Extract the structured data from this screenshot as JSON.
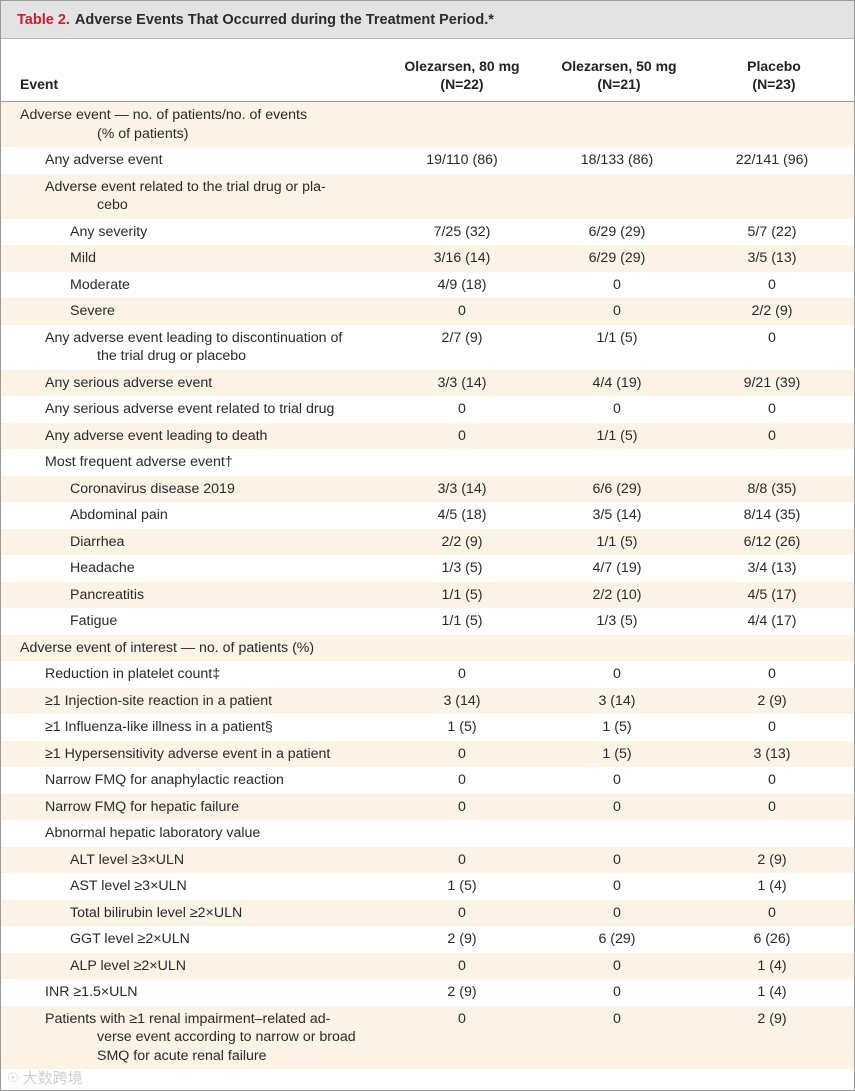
{
  "table": {
    "label": "Table 2.",
    "title": "Adverse Events That Occurred during the Treatment Period.*",
    "columns": {
      "event": "Event",
      "groups": [
        {
          "name": "Olezarsen, 80 mg",
          "n": "(N=22)"
        },
        {
          "name": "Olezarsen, 50 mg",
          "n": "(N=21)"
        },
        {
          "name": "Placebo",
          "n": "(N=23)"
        }
      ]
    },
    "rows": [
      {
        "label": [
          "Adverse event — no. of patients/no. of events",
          "(% of patients)"
        ],
        "indent": 0,
        "shade": true,
        "values": [
          "",
          "",
          ""
        ]
      },
      {
        "label": [
          "Any adverse event"
        ],
        "indent": 1,
        "shade": false,
        "values": [
          "19/110 (86)",
          "18/133 (86)",
          "22/141 (96)"
        ]
      },
      {
        "label": [
          "Adverse event related to the trial drug or pla-",
          "cebo"
        ],
        "indent": 1,
        "shade": true,
        "values": [
          "",
          "",
          ""
        ]
      },
      {
        "label": [
          "Any severity"
        ],
        "indent": 2,
        "shade": false,
        "values": [
          "7/25 (32)",
          "6/29 (29)",
          "5/7 (22)"
        ]
      },
      {
        "label": [
          "Mild"
        ],
        "indent": 2,
        "shade": true,
        "values": [
          "3/16 (14)",
          "6/29 (29)",
          "3/5 (13)"
        ]
      },
      {
        "label": [
          "Moderate"
        ],
        "indent": 2,
        "shade": false,
        "values": [
          "4/9 (18)",
          "0",
          "0"
        ]
      },
      {
        "label": [
          "Severe"
        ],
        "indent": 2,
        "shade": true,
        "values": [
          "0",
          "0",
          "2/2 (9)"
        ]
      },
      {
        "label": [
          "Any adverse event leading to discontinuation of",
          "the trial drug or placebo"
        ],
        "indent": 1,
        "shade": false,
        "values": [
          "2/7 (9)",
          "1/1 (5)",
          "0"
        ]
      },
      {
        "label": [
          "Any serious adverse event"
        ],
        "indent": 1,
        "shade": true,
        "values": [
          "3/3 (14)",
          "4/4 (19)",
          "9/21 (39)"
        ]
      },
      {
        "label": [
          "Any serious adverse event related to trial drug"
        ],
        "indent": 1,
        "shade": false,
        "values": [
          "0",
          "0",
          "0"
        ]
      },
      {
        "label": [
          "Any adverse event leading to death"
        ],
        "indent": 1,
        "shade": true,
        "values": [
          "0",
          "1/1 (5)",
          "0"
        ]
      },
      {
        "label": [
          "Most frequent adverse event†"
        ],
        "indent": 1,
        "shade": false,
        "values": [
          "",
          "",
          ""
        ]
      },
      {
        "label": [
          "Coronavirus disease 2019"
        ],
        "indent": 2,
        "shade": true,
        "values": [
          "3/3 (14)",
          "6/6 (29)",
          "8/8 (35)"
        ]
      },
      {
        "label": [
          "Abdominal pain"
        ],
        "indent": 2,
        "shade": false,
        "values": [
          "4/5 (18)",
          "3/5 (14)",
          "8/14 (35)"
        ]
      },
      {
        "label": [
          "Diarrhea"
        ],
        "indent": 2,
        "shade": true,
        "values": [
          "2/2 (9)",
          "1/1 (5)",
          "6/12 (26)"
        ]
      },
      {
        "label": [
          "Headache"
        ],
        "indent": 2,
        "shade": false,
        "values": [
          "1/3 (5)",
          "4/7 (19)",
          "3/4 (13)"
        ]
      },
      {
        "label": [
          "Pancreatitis"
        ],
        "indent": 2,
        "shade": true,
        "values": [
          "1/1 (5)",
          "2/2 (10)",
          "4/5 (17)"
        ]
      },
      {
        "label": [
          "Fatigue"
        ],
        "indent": 2,
        "shade": false,
        "values": [
          "1/1 (5)",
          "1/3 (5)",
          "4/4 (17)"
        ]
      },
      {
        "label": [
          "Adverse event of interest — no. of patients (%)"
        ],
        "indent": 0,
        "shade": true,
        "values": [
          "",
          "",
          ""
        ]
      },
      {
        "label": [
          "Reduction in platelet count‡"
        ],
        "indent": 1,
        "shade": false,
        "values": [
          "0",
          "0",
          "0"
        ]
      },
      {
        "label": [
          "≥1 Injection-site reaction in a patient"
        ],
        "indent": 1,
        "shade": true,
        "values": [
          "3 (14)",
          "3 (14)",
          "2 (9)"
        ]
      },
      {
        "label": [
          "≥1 Influenza-like illness in a patient§"
        ],
        "indent": 1,
        "shade": false,
        "values": [
          "1 (5)",
          "1 (5)",
          "0"
        ]
      },
      {
        "label": [
          "≥1 Hypersensitivity adverse event in a patient"
        ],
        "indent": 1,
        "shade": true,
        "values": [
          "0",
          "1 (5)",
          "3 (13)"
        ]
      },
      {
        "label": [
          "Narrow FMQ for anaphylactic reaction"
        ],
        "indent": 1,
        "shade": false,
        "values": [
          "0",
          "0",
          "0"
        ]
      },
      {
        "label": [
          "Narrow FMQ for hepatic failure"
        ],
        "indent": 1,
        "shade": true,
        "values": [
          "0",
          "0",
          "0"
        ]
      },
      {
        "label": [
          "Abnormal hepatic laboratory value"
        ],
        "indent": 1,
        "shade": false,
        "values": [
          "",
          "",
          ""
        ]
      },
      {
        "label": [
          "ALT level ≥3×ULN"
        ],
        "indent": 2,
        "shade": true,
        "values": [
          "0",
          "0",
          "2 (9)"
        ]
      },
      {
        "label": [
          "AST level ≥3×ULN"
        ],
        "indent": 2,
        "shade": false,
        "values": [
          "1 (5)",
          "0",
          "1 (4)"
        ]
      },
      {
        "label": [
          "Total bilirubin level ≥2×ULN"
        ],
        "indent": 2,
        "shade": true,
        "values": [
          "0",
          "0",
          "0"
        ]
      },
      {
        "label": [
          "GGT level ≥2×ULN"
        ],
        "indent": 2,
        "shade": false,
        "values": [
          "2 (9)",
          "6 (29)",
          "6 (26)"
        ]
      },
      {
        "label": [
          "ALP level ≥2×ULN"
        ],
        "indent": 2,
        "shade": true,
        "values": [
          "0",
          "0",
          "1 (4)"
        ]
      },
      {
        "label": [
          "INR ≥1.5×ULN"
        ],
        "indent": 1,
        "shade": false,
        "values": [
          "2 (9)",
          "0",
          "1 (4)"
        ]
      },
      {
        "label": [
          "Patients with ≥1 renal impairment–related ad-",
          "verse event according to narrow or broad",
          "SMQ for acute renal failure"
        ],
        "indent": 1,
        "shade": true,
        "values": [
          "0",
          "0",
          "2 (9)"
        ]
      }
    ]
  },
  "watermark": "大数跨境"
}
